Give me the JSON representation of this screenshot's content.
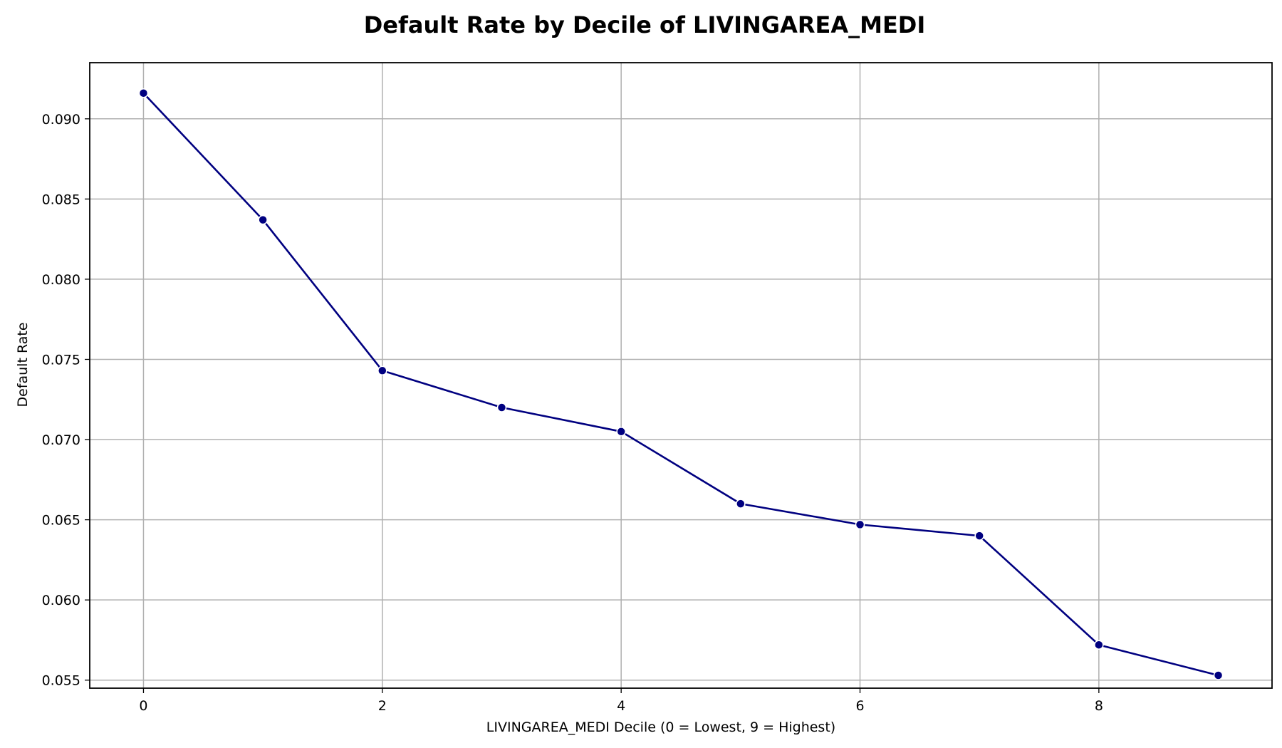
{
  "chart_data": {
    "type": "line",
    "title": "Default Rate by Decile of LIVINGAREA_MEDI",
    "xlabel": "LIVINGAREA_MEDI Decile (0 = Lowest, 9 = Highest)",
    "ylabel": "Default Rate",
    "x": [
      0,
      1,
      2,
      3,
      4,
      5,
      6,
      7,
      8,
      9
    ],
    "series": [
      {
        "values": [
          0.0916,
          0.0837,
          0.0743,
          0.072,
          0.0705,
          0.066,
          0.0647,
          0.064,
          0.0572,
          0.0553
        ],
        "color": "#000080",
        "marker": "circle"
      }
    ],
    "xlim": [
      -0.45,
      9.45
    ],
    "ylim": [
      0.0545,
      0.0935
    ],
    "xticks": [
      0,
      2,
      4,
      6,
      8
    ],
    "xtick_labels": [
      "0",
      "2",
      "4",
      "6",
      "8"
    ],
    "yticks": [
      0.055,
      0.06,
      0.065,
      0.07,
      0.075,
      0.08,
      0.085,
      0.09
    ],
    "ytick_labels": [
      "0.055",
      "0.060",
      "0.065",
      "0.070",
      "0.075",
      "0.080",
      "0.085",
      "0.090"
    ],
    "grid": true,
    "legend": "none"
  }
}
